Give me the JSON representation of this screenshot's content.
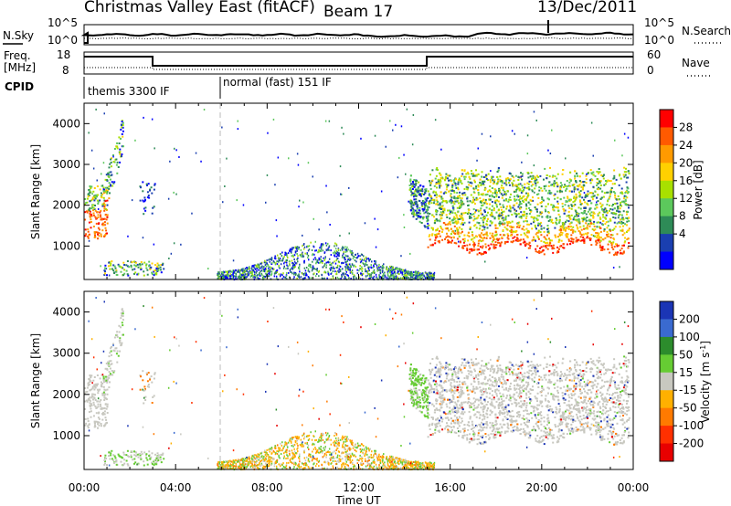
{
  "header": {
    "station": "Christmas Valley East (fitACF)",
    "beam": "Beam 17",
    "date": "13/Dec/2011"
  },
  "noise_panel": {
    "left_label": "N.Sky",
    "right_label": "N.Search",
    "tick_top": "10^5",
    "tick_bottom": "10^0"
  },
  "freq_panel": {
    "left_label": "Freq.",
    "left_unit": "[MHz]",
    "right_label": "Nave",
    "left_ticks": [
      "18",
      "8"
    ],
    "right_ticks": [
      "60",
      "0"
    ]
  },
  "cpid": {
    "label": "CPID",
    "modes": [
      {
        "name": "themis 3300 IF",
        "start_hour": 0
      },
      {
        "name": "normal (fast) 151 IF",
        "start_hour": 6
      }
    ]
  },
  "x_axis": {
    "title": "Time UT",
    "ticks": [
      "00:00",
      "04:00",
      "08:00",
      "12:00",
      "16:00",
      "20:00",
      "00:00"
    ]
  },
  "chart_data": [
    {
      "type": "heatmap",
      "name": "power",
      "ylabel": "Slant Range [km]",
      "yticks": [
        "4000",
        "3000",
        "2000",
        "1000"
      ],
      "xlim": [
        0,
        24
      ],
      "ylim": [
        180,
        4500
      ],
      "colorbar": {
        "label": "Power [dB]",
        "ticks": [
          "28",
          "24",
          "20",
          "16",
          "12",
          "8",
          "4"
        ],
        "colors": [
          "#ff0000",
          "#ff5a00",
          "#ff9a00",
          "#ffd000",
          "#a8e000",
          "#5cc85c",
          "#2e8b57",
          "#1a3fb0",
          "#0000ff"
        ]
      }
    },
    {
      "type": "heatmap",
      "name": "velocity",
      "ylabel": "Slant Range [km]",
      "yticks": [
        "4000",
        "3000",
        "2000",
        "1000"
      ],
      "xlim": [
        0,
        24
      ],
      "ylim": [
        180,
        4500
      ],
      "colorbar": {
        "label": "Velocity [m s^-1]",
        "ticks": [
          "200",
          "100",
          "50",
          "15",
          "-15",
          "-50",
          "-100",
          "-200"
        ],
        "colors": [
          "#1b35b5",
          "#3a6ad0",
          "#2c8c2c",
          "#66cc33",
          "#c8c8c0",
          "#ffb000",
          "#ff7a00",
          "#ff3000",
          "#e80000"
        ]
      }
    }
  ]
}
